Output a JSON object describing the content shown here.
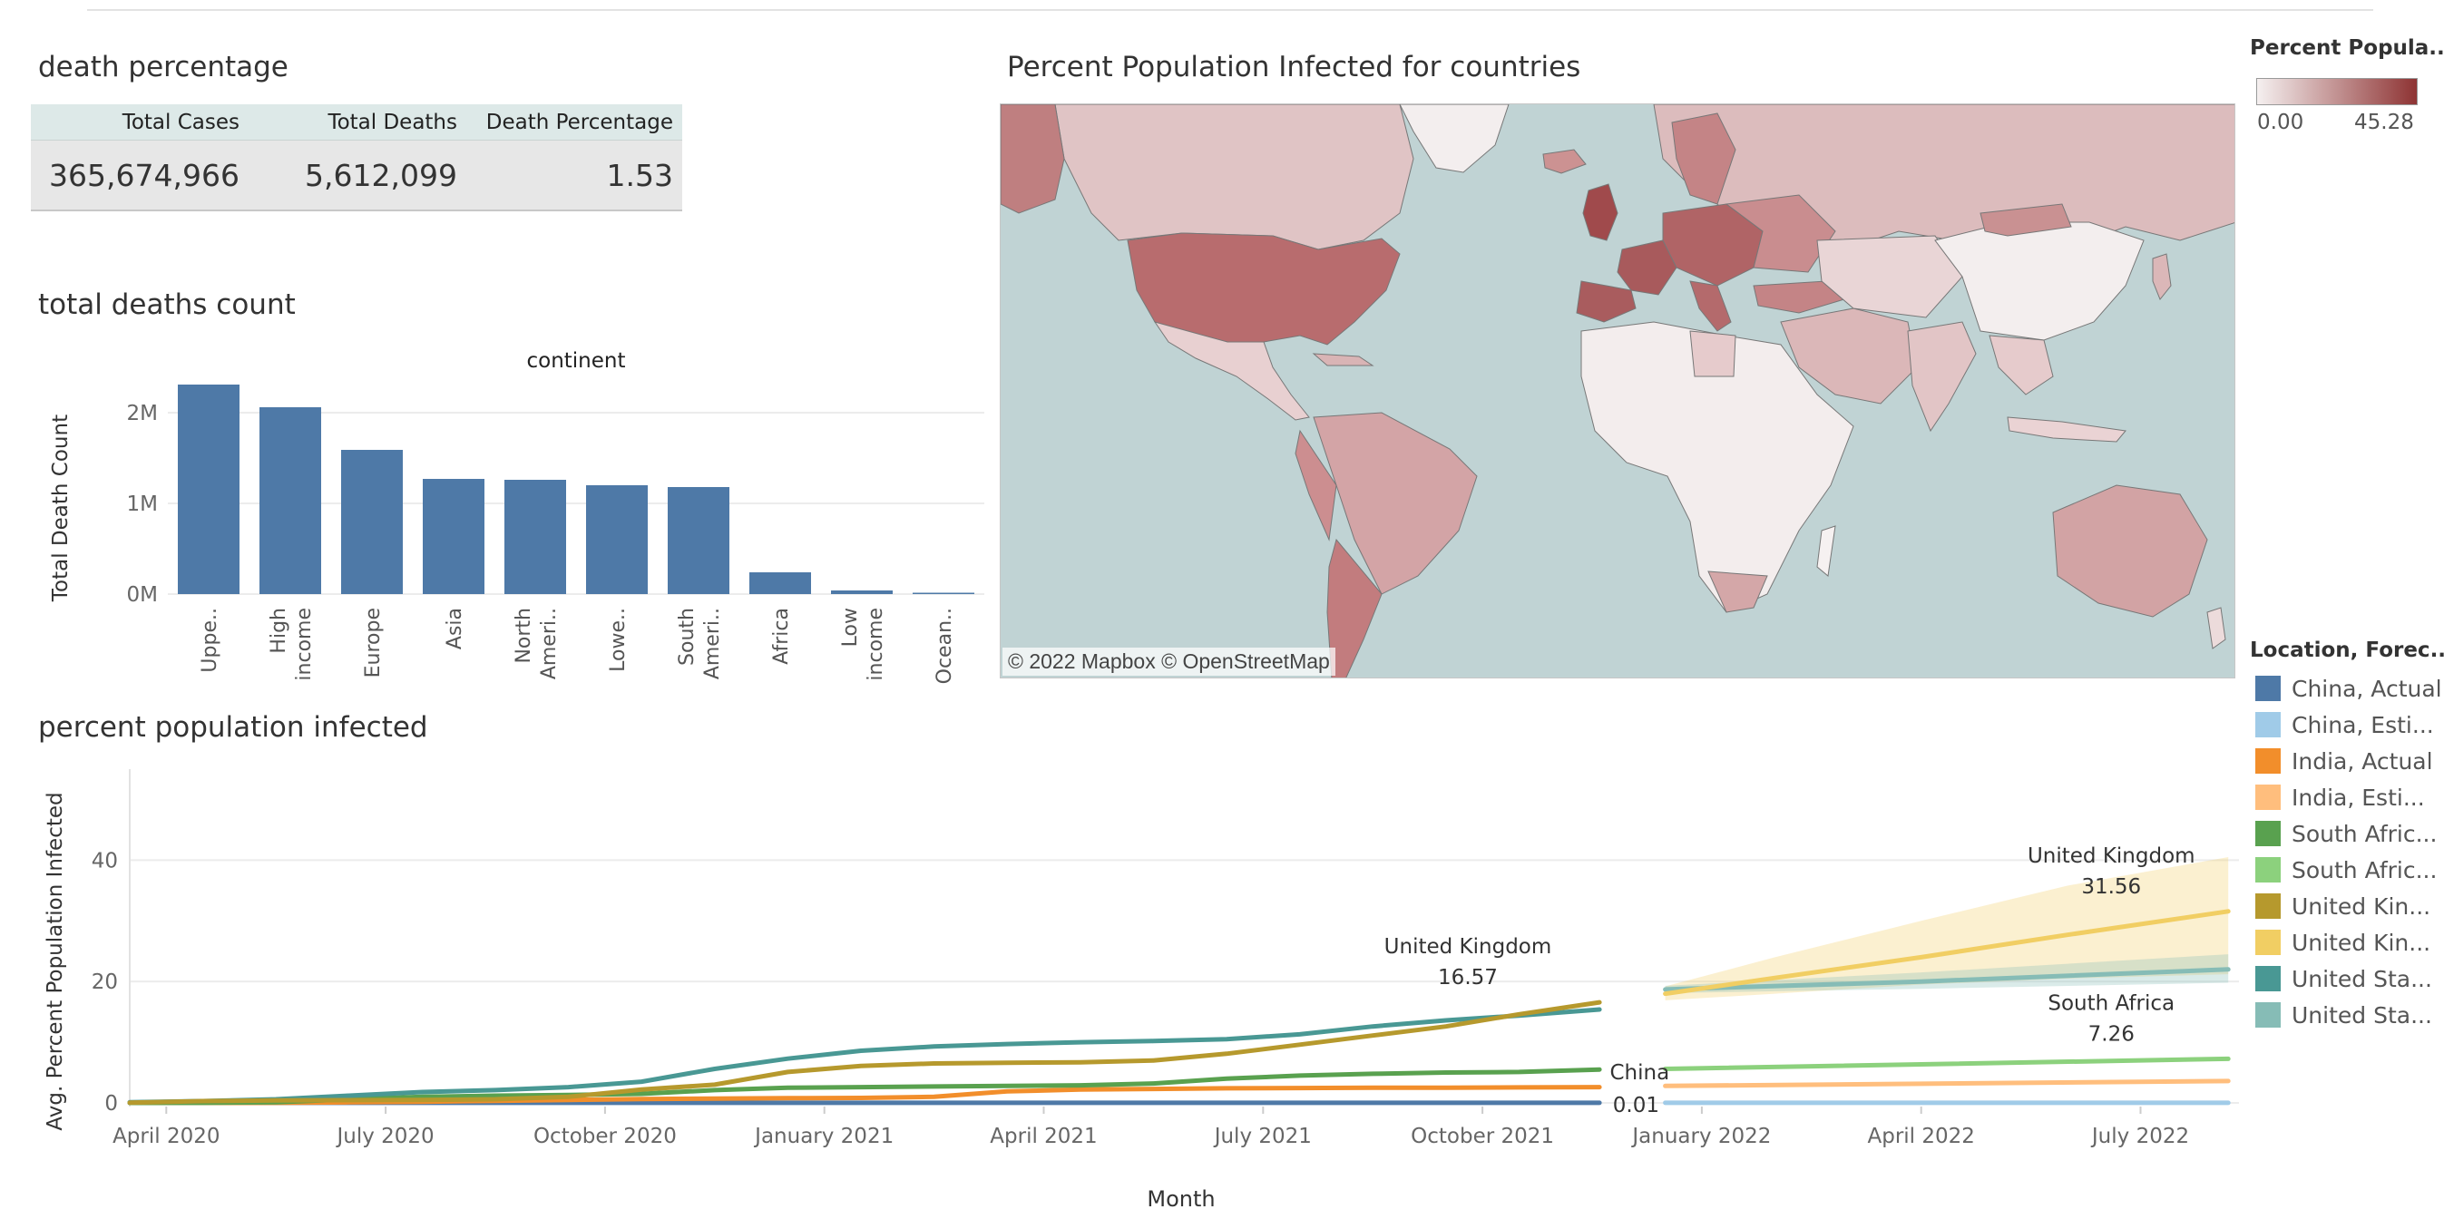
{
  "dashboard": {
    "death_percentage": {
      "title": "death percentage",
      "headers": [
        "Total Cases",
        "Total Deaths",
        "Death Percentage"
      ],
      "values": [
        "365,674,966",
        "5,612,099",
        "1.53"
      ]
    },
    "map": {
      "title": "Percent Population Infected for countries",
      "credit": "© 2022 Mapbox  © OpenStreetMap",
      "legend_title": "Percent Popula...",
      "legend_min": "0.00",
      "legend_max": "45.28",
      "colors": {
        "low": "#f5f0f0",
        "high": "#8e3333",
        "ocean": "#c0d3d4"
      }
    },
    "location_legend": {
      "title": "Location, Forec...",
      "items": [
        {
          "label": "China, Actual",
          "color": "#4e79a7"
        },
        {
          "label": "China, Esti...",
          "color": "#a0cbe8"
        },
        {
          "label": "India, Actual",
          "color": "#f28e2b"
        },
        {
          "label": "India, Esti...",
          "color": "#ffbe7d"
        },
        {
          "label": "South Afric...",
          "color": "#59a14f"
        },
        {
          "label": "South Afric...",
          "color": "#8cd17d"
        },
        {
          "label": "United Kin...",
          "color": "#b6992d"
        },
        {
          "label": "United Kin...",
          "color": "#f1ce63"
        },
        {
          "label": "United Sta...",
          "color": "#499894"
        },
        {
          "label": "United Sta...",
          "color": "#86bcb6"
        }
      ]
    }
  },
  "chart_data": [
    {
      "type": "bar",
      "title": "total deaths count",
      "header": "continent",
      "ylabel": "Total Death Count",
      "xlabel": "",
      "ylim": [
        0,
        2500000
      ],
      "yticks": [
        {
          "v": 0,
          "label": "0M"
        },
        {
          "v": 1000000,
          "label": "1M"
        },
        {
          "v": 2000000,
          "label": "2M"
        }
      ],
      "categories": [
        [
          "Uppe.."
        ],
        [
          "High",
          "income"
        ],
        [
          "Europe"
        ],
        [
          "Asia"
        ],
        [
          "North",
          "Ameri.."
        ],
        [
          "Lowe.."
        ],
        [
          "South",
          "Ameri.."
        ],
        [
          "Africa"
        ],
        [
          "Low",
          "income"
        ],
        [
          "Ocean.."
        ]
      ],
      "values": [
        2310000,
        2060000,
        1590000,
        1270000,
        1260000,
        1200000,
        1180000,
        240000,
        40000,
        3000
      ],
      "color": "#4e79a7"
    },
    {
      "type": "line",
      "title": "percent population infected",
      "xlabel": "Month",
      "ylabel": "Avg. Percent Population Infected",
      "ylim": [
        0,
        55
      ],
      "yticks": [
        0,
        20,
        40
      ],
      "xticks": [
        {
          "m": 0.5,
          "label": "April 2020"
        },
        {
          "m": 3.5,
          "label": "July 2020"
        },
        {
          "m": 6.5,
          "label": "October 2020"
        },
        {
          "m": 9.5,
          "label": "January 2021"
        },
        {
          "m": 12.5,
          "label": "April 2021"
        },
        {
          "m": 15.5,
          "label": "July 2021"
        },
        {
          "m": 18.5,
          "label": "October 2021"
        },
        {
          "m": 21.5,
          "label": "January 2022"
        },
        {
          "m": 24.5,
          "label": "April 2022"
        },
        {
          "m": 27.5,
          "label": "July 2022"
        }
      ],
      "x_unit": "months since March 2020 (0.5 = April 2020)",
      "series": [
        {
          "name": "United States, Actual",
          "color": "#499894",
          "x": [
            0,
            1,
            2,
            3,
            4,
            5,
            6,
            7,
            8,
            9,
            10,
            11,
            12,
            13,
            14,
            15,
            16,
            17,
            18,
            19,
            20.1
          ],
          "values": [
            0.1,
            0.3,
            0.6,
            1.2,
            1.8,
            2.1,
            2.6,
            3.5,
            5.6,
            7.3,
            8.6,
            9.3,
            9.7,
            10.0,
            10.2,
            10.5,
            11.3,
            12.6,
            13.6,
            14.4,
            15.4
          ]
        },
        {
          "name": "United Kingdom, Actual",
          "color": "#b6992d",
          "x": [
            0,
            1,
            2,
            3,
            4,
            5,
            6,
            7,
            8,
            9,
            10,
            11,
            12,
            13,
            14,
            15,
            16,
            17,
            18,
            19,
            20.1
          ],
          "values": [
            0.05,
            0.3,
            0.4,
            0.45,
            0.5,
            0.6,
            1.0,
            2.2,
            3.0,
            5.1,
            6.1,
            6.5,
            6.6,
            6.7,
            7.0,
            8.1,
            9.6,
            11.1,
            12.6,
            14.6,
            16.57
          ]
        },
        {
          "name": "South Africa, Actual",
          "color": "#59a14f",
          "x": [
            0,
            1,
            2,
            3,
            4,
            5,
            6,
            7,
            8,
            9,
            10,
            11,
            12,
            13,
            14,
            15,
            16,
            17,
            18,
            19,
            20.1
          ],
          "values": [
            0.0,
            0.02,
            0.1,
            0.6,
            1.0,
            1.2,
            1.3,
            1.5,
            2.1,
            2.5,
            2.6,
            2.7,
            2.8,
            2.9,
            3.2,
            4.0,
            4.5,
            4.8,
            5.0,
            5.1,
            5.5
          ]
        },
        {
          "name": "India, Actual",
          "color": "#f28e2b",
          "x": [
            0,
            1,
            2,
            3,
            4,
            5,
            6,
            7,
            8,
            9,
            10,
            11,
            12,
            13,
            14,
            15,
            16,
            17,
            18,
            19,
            20.1
          ],
          "values": [
            0.0,
            0.0,
            0.02,
            0.1,
            0.2,
            0.35,
            0.5,
            0.65,
            0.72,
            0.78,
            0.82,
            1.0,
            1.9,
            2.2,
            2.3,
            2.4,
            2.45,
            2.5,
            2.5,
            2.55,
            2.6
          ]
        },
        {
          "name": "China, Actual",
          "color": "#4e79a7",
          "x": [
            0,
            20.1
          ],
          "values": [
            0.01,
            0.01
          ]
        },
        {
          "name": "United Kingdom, Estimate",
          "color": "#f1ce63",
          "x": [
            21,
            22.5,
            24.5,
            26.5,
            28.7
          ],
          "values": [
            18.0,
            20.6,
            24.0,
            27.7,
            31.56
          ],
          "band_upper": [
            19.2,
            24.0,
            30.0,
            35.8,
            40.5
          ],
          "band_lower": [
            16.9,
            18.0,
            19.5,
            20.5,
            21.2
          ]
        },
        {
          "name": "United States, Estimate",
          "color": "#86bcb6",
          "x": [
            21,
            24.5,
            28.7
          ],
          "values": [
            18.7,
            20.0,
            22.0
          ],
          "band_upper": [
            19.3,
            21.5,
            24.5
          ],
          "band_lower": [
            18.1,
            18.8,
            19.8
          ]
        },
        {
          "name": "South Africa, Estimate",
          "color": "#8cd17d",
          "x": [
            21,
            28.7
          ],
          "values": [
            5.6,
            7.26
          ]
        },
        {
          "name": "India, Estimate",
          "color": "#ffbe7d",
          "x": [
            21,
            28.7
          ],
          "values": [
            2.8,
            3.6
          ]
        },
        {
          "name": "China, Estimate",
          "color": "#a0cbe8",
          "x": [
            21,
            28.7
          ],
          "values": [
            0.02,
            0.02
          ]
        }
      ],
      "annotations": [
        {
          "x": 18.3,
          "y": 16.57,
          "label": "United Kingdom",
          "value": "16.57"
        },
        {
          "x": 27.1,
          "y": 31.56,
          "label": "United Kingdom",
          "value": "31.56"
        },
        {
          "x": 27.1,
          "y": 7.26,
          "label": "South Africa",
          "value": "7.26"
        },
        {
          "x": 20.6,
          "y": 0.01,
          "label": "China",
          "value": "0.01"
        }
      ]
    }
  ]
}
